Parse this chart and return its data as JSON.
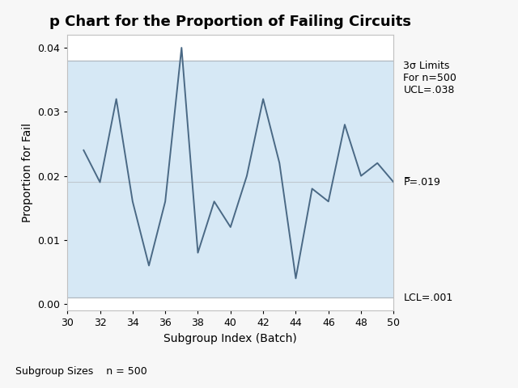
{
  "title": "p Chart for the Proportion of Failing Circuits",
  "xlabel": "Subgroup Index (Batch)",
  "ylabel": "Proportion for Fail",
  "x": [
    31,
    32,
    33,
    34,
    35,
    36,
    37,
    38,
    39,
    40,
    41,
    42,
    43,
    44,
    45,
    46,
    47,
    48,
    49,
    50
  ],
  "y": [
    0.024,
    0.019,
    0.032,
    0.016,
    0.006,
    0.016,
    0.04,
    0.008,
    0.016,
    0.012,
    0.02,
    0.032,
    0.022,
    0.004,
    0.018,
    0.016,
    0.028,
    0.02,
    0.022,
    0.019
  ],
  "ucl": 0.038,
  "lcl": 0.001,
  "pbar": 0.019,
  "xlim": [
    30,
    50
  ],
  "ylim": [
    -0.001,
    0.042
  ],
  "xticks": [
    30,
    32,
    34,
    36,
    38,
    40,
    42,
    44,
    46,
    48,
    50
  ],
  "yticks": [
    0.0,
    0.01,
    0.02,
    0.03,
    0.04
  ],
  "line_color": "#4a6985",
  "fill_color": "#d6e8f5",
  "plot_bg_color": "#ffffff",
  "fig_bg_color": "#f7f7f7",
  "ucl_label": "3σ Limits\nFor n=500\nUCL=.038",
  "pbar_label": "P̅=.019",
  "lcl_label": "LCL=.001",
  "footer": "Subgroup Sizes    n = 500",
  "title_fontsize": 13,
  "axis_fontsize": 10,
  "tick_fontsize": 9,
  "annotation_fontsize": 9
}
